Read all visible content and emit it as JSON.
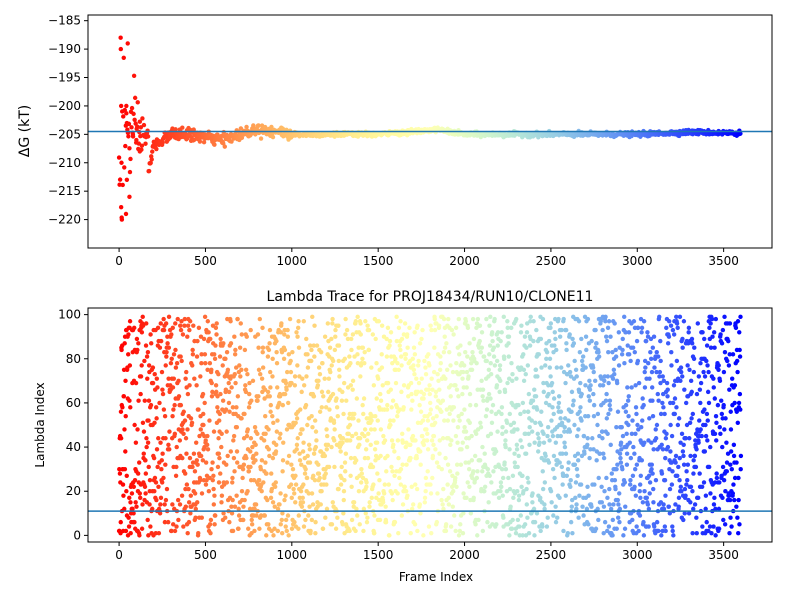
{
  "chart_data": [
    {
      "type": "scatter",
      "title": "",
      "xlabel": "",
      "ylabel": "ΔG (kT)",
      "xlim": [
        -180,
        3780
      ],
      "ylim": [
        -225,
        -184
      ],
      "xticks": [
        0,
        500,
        1000,
        1500,
        2000,
        2500,
        3000,
        3500
      ],
      "yticks": [
        -220,
        -215,
        -210,
        -205,
        -200,
        -195,
        -190,
        -185
      ],
      "hline": -204.5,
      "hline_color": "#1f77b4",
      "colormap": "rainbow (red at frame 0 → violet at last frame)",
      "n_frames": 3600,
      "series": [
        {
          "description": "running free-energy estimate per frame",
          "points_sample": [
            [
              10,
              -190
            ],
            [
              12,
              -200
            ],
            [
              14,
              -210
            ],
            [
              16,
              -220
            ],
            [
              40,
              -219
            ],
            [
              42,
              -200
            ],
            [
              45,
              -213
            ],
            [
              50,
              -189
            ],
            [
              60,
              -216
            ],
            [
              80,
              -205
            ],
            [
              100,
              -206
            ],
            [
              120,
              -208
            ],
            [
              150,
              -209
            ],
            [
              170,
              -212
            ],
            [
              200,
              -207
            ],
            [
              300,
              -205
            ],
            [
              400,
              -205
            ],
            [
              600,
              -206
            ],
            [
              800,
              -204
            ],
            [
              1000,
              -205
            ],
            [
              1200,
              -205
            ],
            [
              1500,
              -205
            ],
            [
              1850,
              -204.2
            ],
            [
              2000,
              -205
            ],
            [
              2500,
              -205
            ],
            [
              3000,
              -205
            ],
            [
              3300,
              -204.6
            ],
            [
              3600,
              -204.8
            ]
          ]
        }
      ]
    },
    {
      "type": "scatter",
      "title": "Lambda Trace for PROJ18434/RUN10/CLONE11",
      "xlabel": "Frame Index",
      "ylabel": "Lambda Index",
      "xlim": [
        -180,
        3780
      ],
      "ylim": [
        -3,
        103
      ],
      "xticks": [
        0,
        500,
        1000,
        1500,
        2000,
        2500,
        3000,
        3500
      ],
      "yticks": [
        0,
        20,
        40,
        60,
        80,
        100
      ],
      "hline": 11,
      "hline_color": "#1f77b4",
      "colormap": "rainbow (red at frame 0 → violet at last frame)",
      "n_frames": 3600,
      "series": [
        {
          "description": "lambda index visited at each frame, spread uniformly over 0–99",
          "value_range": [
            0,
            99
          ]
        }
      ]
    }
  ]
}
